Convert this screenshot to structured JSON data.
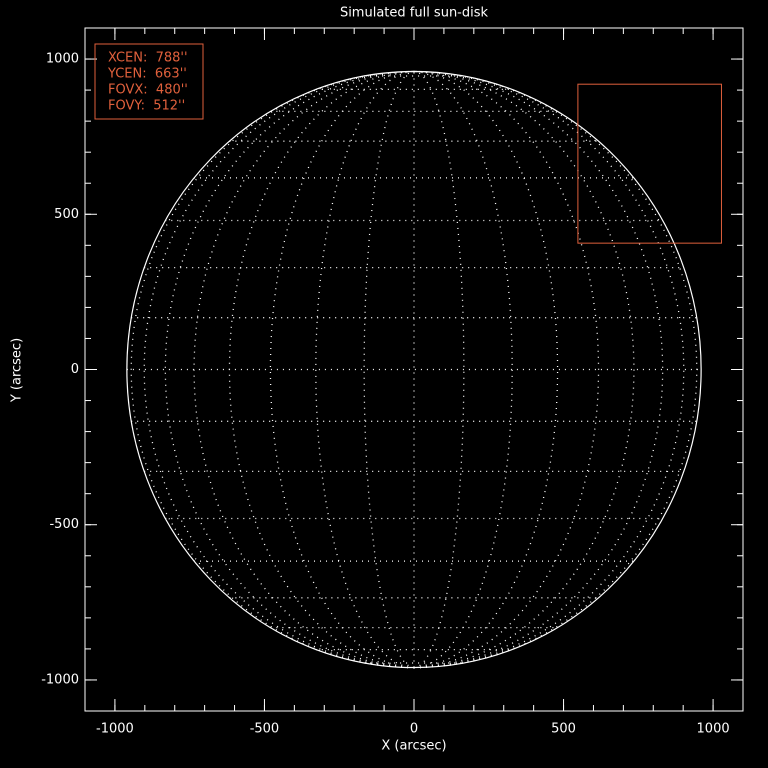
{
  "chart_data": {
    "type": "sun-disk",
    "title": "Simulated full sun-disk",
    "x_label": "X (arcsec)",
    "y_label": "Y (arcsec)",
    "xlim": [
      -1100,
      1100
    ],
    "ylim": [
      -1100,
      1100
    ],
    "xticks": [
      -1000,
      -500,
      0,
      500,
      1000
    ],
    "yticks": [
      -1000,
      -500,
      0,
      500,
      1000
    ],
    "minor_tick_step": 100,
    "disk_radius": 960,
    "graticule_step": 10,
    "disk_color": "#ffffff",
    "fov_box": {
      "color": "#e0603c",
      "xcen": 788,
      "ycen": 663,
      "fovx": 480,
      "fovy": 512,
      "value_labels": [
        "XCEN:  788''",
        "YCEN:  663''",
        "FOVX:  480''",
        "FOVY:  512''"
      ]
    }
  }
}
